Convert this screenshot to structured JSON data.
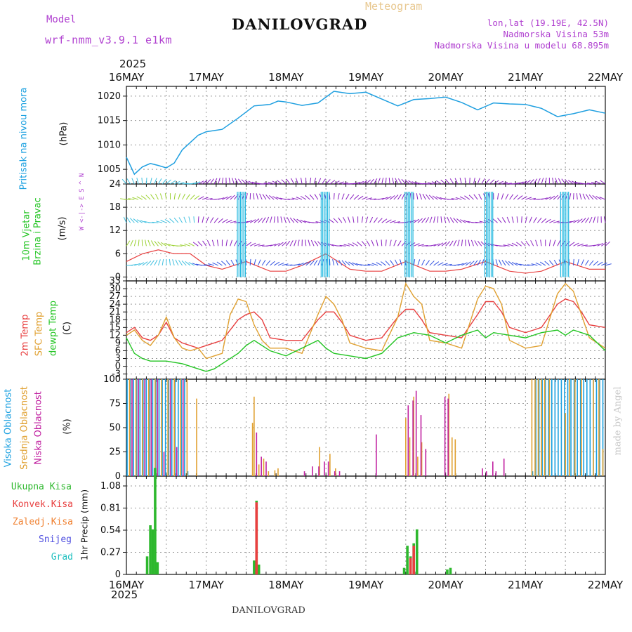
{
  "header": {
    "model_label": "Model",
    "model_name": "wrf-nmm_v3.9.1 e1km",
    "title": "DANILOVGRAD",
    "meteogram_label": "Meteogram",
    "lonlat": "lon,lat (19.19E, 42.5N)",
    "elevation": "Nadmorska Visina 53m",
    "model_elevation": "Nadmorska Visina u modelu 68.895m",
    "year_top": "2025",
    "year_bottom": "2025",
    "footer_station": "DANILOVGRAD",
    "watermark": "made by Angel"
  },
  "colors": {
    "pressure": "#1e9fe0",
    "temp2m": "#e84040",
    "sfc": "#e0a030",
    "dewpt": "#22c422",
    "high_cloud": "#1aa0e0",
    "mid_cloud": "#e0a030",
    "low_cloud": "#c020a0",
    "total_precip": "#2eb82e",
    "conv": "#e84040",
    "frz": "#f08030",
    "snow": "#5050e0",
    "grad": "#20c0c0",
    "purple_text": "#b040d0"
  },
  "panel_labels": {
    "pressure": {
      "main": "Pritisak na nivou mora",
      "unit": "(hPa)"
    },
    "wind": {
      "main1": "10m Vjetar",
      "main2": "Brzina i Pravac",
      "unit": "(m/s)",
      "compass": "W <-|-> E  S ^ N"
    },
    "temp": {
      "main1": "2m Temp",
      "main2": "SFC Temp",
      "main3": "dewpt Temp",
      "unit": "(C)"
    },
    "cloud": {
      "main1": "Visoka Oblacnost",
      "main2": "Srednja Oblacnost",
      "main3": "Niska Oblacnost",
      "unit": "(%)"
    },
    "precip": {
      "l1": "Ukupna Kisa",
      "l2": "Konvek.Kisa",
      "l3": "Zaledj.Kisa",
      "l4": "Snijeg",
      "l5": "Grad",
      "unit": "1hr Precip (mm)"
    }
  },
  "chart_data": [
    {
      "type": "line",
      "name": "pressure",
      "x_categories": [
        "16MAY",
        "17MAY",
        "18MAY",
        "19MAY",
        "20MAY",
        "21MAY",
        "22MAY"
      ],
      "ylim": [
        1002,
        1022
      ],
      "yticks": [
        1005,
        1010,
        1015,
        1020
      ],
      "grid": true,
      "series": [
        {
          "name": "Pritisak na nivou mora",
          "x": [
            0,
            0.1,
            0.2,
            0.3,
            0.4,
            0.5,
            0.6,
            0.7,
            0.8,
            0.9,
            1.0,
            1.2,
            1.4,
            1.6,
            1.8,
            1.9,
            2.0,
            2.2,
            2.4,
            2.6,
            2.8,
            3.0,
            3.2,
            3.4,
            3.6,
            3.8,
            4.0,
            4.2,
            4.4,
            4.6,
            4.8,
            5.0,
            5.2,
            5.4,
            5.6,
            5.8,
            6.0
          ],
          "values": [
            1007.5,
            1004,
            1005.5,
            1006.2,
            1005.8,
            1005.3,
            1006.3,
            1009,
            1010.5,
            1012,
            1012.7,
            1013.2,
            1015.5,
            1018,
            1018.3,
            1019,
            1018.8,
            1018.1,
            1018.6,
            1021,
            1020.5,
            1020.8,
            1019.4,
            1018,
            1019.3,
            1019.5,
            1019.8,
            1018.7,
            1017.2,
            1018.6,
            1018.4,
            1018.3,
            1017.5,
            1015.8,
            1016.4,
            1017.2,
            1016.5
          ]
        }
      ]
    },
    {
      "type": "line",
      "name": "wind",
      "x_categories": [
        "16MAY",
        "17MAY",
        "18MAY",
        "19MAY",
        "20MAY",
        "21MAY",
        "22MAY"
      ],
      "ylim": [
        -1,
        24
      ],
      "yticks": [
        0,
        6,
        12,
        18,
        24
      ],
      "grid": true,
      "series": [
        {
          "name": "wind_speed",
          "x": [
            0,
            0.2,
            0.4,
            0.6,
            0.8,
            1.0,
            1.2,
            1.5,
            1.8,
            2.0,
            2.2,
            2.5,
            2.8,
            3.0,
            3.2,
            3.5,
            3.8,
            4.0,
            4.2,
            4.5,
            4.8,
            5.0,
            5.2,
            5.5,
            5.8,
            6.0
          ],
          "values": [
            4,
            6,
            7,
            6,
            6,
            3,
            2,
            4,
            1.5,
            1.5,
            3,
            6,
            2,
            1.5,
            1.5,
            4,
            1.5,
            1.5,
            2,
            4,
            1.5,
            1,
            1.5,
            4,
            2,
            2
          ]
        }
      ]
    },
    {
      "type": "line",
      "name": "temperature",
      "x_categories": [
        "16MAY",
        "17MAY",
        "18MAY",
        "19MAY",
        "20MAY",
        "21MAY",
        "22MAY"
      ],
      "ylim": [
        -5,
        33
      ],
      "yticks": [
        -3,
        0,
        3,
        6,
        9,
        12,
        15,
        18,
        21,
        24,
        27,
        30,
        33
      ],
      "grid": true,
      "series": [
        {
          "name": "2m Temp",
          "x": [
            0,
            0.1,
            0.2,
            0.3,
            0.4,
            0.5,
            0.6,
            0.7,
            0.8,
            0.9,
            1.0,
            1.2,
            1.4,
            1.5,
            1.6,
            1.7,
            1.8,
            2.0,
            2.2,
            2.4,
            2.5,
            2.6,
            2.7,
            2.8,
            3.0,
            3.2,
            3.4,
            3.5,
            3.6,
            3.7,
            3.8,
            4.0,
            4.2,
            4.4,
            4.5,
            4.6,
            4.7,
            4.8,
            5.0,
            5.2,
            5.4,
            5.5,
            5.6,
            5.7,
            5.8,
            6.0
          ],
          "values": [
            13,
            15,
            11,
            10,
            12,
            17,
            11,
            9,
            8,
            7,
            8,
            10,
            18,
            20,
            21,
            18,
            11,
            10,
            10,
            18,
            21,
            21,
            17,
            12,
            10,
            11,
            19,
            22,
            22,
            18,
            13,
            12,
            11,
            20,
            25,
            25,
            21,
            15,
            13,
            15,
            24,
            26,
            25,
            21,
            16,
            15
          ]
        },
        {
          "name": "SFC Temp",
          "x": [
            0,
            0.1,
            0.2,
            0.3,
            0.4,
            0.5,
            0.6,
            0.7,
            0.8,
            0.9,
            1.0,
            1.2,
            1.3,
            1.4,
            1.5,
            1.6,
            1.7,
            1.8,
            2.0,
            2.2,
            2.4,
            2.5,
            2.6,
            2.7,
            2.8,
            3.0,
            3.2,
            3.4,
            3.5,
            3.6,
            3.7,
            3.8,
            4.0,
            4.2,
            4.4,
            4.5,
            4.6,
            4.7,
            4.8,
            5.0,
            5.2,
            5.4,
            5.5,
            5.6,
            5.7,
            5.8,
            6.0
          ],
          "values": [
            12,
            14,
            10,
            8,
            12,
            19,
            11,
            7,
            6,
            7,
            3,
            5,
            20,
            26,
            25,
            16,
            10,
            7,
            7,
            5,
            20,
            27,
            24,
            18,
            9,
            7,
            6,
            19,
            32,
            27,
            24,
            10,
            9,
            7,
            26,
            31,
            30,
            24,
            10,
            7,
            8,
            28,
            32,
            29,
            20,
            11,
            7
          ]
        },
        {
          "name": "dewpt Temp",
          "x": [
            0,
            0.1,
            0.2,
            0.3,
            0.5,
            0.7,
            0.9,
            1.0,
            1.1,
            1.2,
            1.4,
            1.5,
            1.6,
            1.8,
            2.0,
            2.2,
            2.4,
            2.5,
            2.6,
            2.8,
            3.0,
            3.2,
            3.4,
            3.5,
            3.6,
            3.8,
            4.0,
            4.2,
            4.4,
            4.5,
            4.6,
            4.8,
            5.0,
            5.2,
            5.4,
            5.5,
            5.6,
            5.8,
            6.0
          ],
          "values": [
            11,
            5,
            3,
            2,
            2,
            1,
            -1,
            -2,
            -1,
            1,
            5,
            8,
            10,
            6,
            4,
            7,
            10,
            7,
            5,
            4,
            3,
            5,
            11,
            12,
            13,
            12,
            9,
            12,
            14,
            11,
            13,
            12,
            11,
            13,
            14,
            12,
            14,
            12,
            6
          ]
        }
      ]
    },
    {
      "type": "bar",
      "name": "cloud",
      "ylim": [
        0,
        100
      ],
      "yticks": [
        0,
        25,
        50,
        75,
        100
      ],
      "grid": true,
      "series": [
        {
          "name": "Visoka Oblacnost",
          "x": [
            0.02,
            0.06,
            0.1,
            0.14,
            0.18,
            0.22,
            0.26,
            0.3,
            0.34,
            0.38,
            0.42,
            0.46,
            0.5,
            0.54,
            0.58,
            0.62,
            0.66,
            0.7,
            0.74,
            0.78,
            5.1,
            5.14,
            5.18,
            5.22,
            5.26,
            5.3,
            5.34,
            5.38,
            5.42,
            5.46,
            5.5,
            5.54,
            5.58,
            5.62,
            5.66,
            5.7,
            5.74,
            5.78,
            5.82,
            5.86,
            5.9,
            5.94,
            5.98
          ],
          "values": [
            100,
            100,
            100,
            100,
            100,
            100,
            100,
            100,
            100,
            100,
            100,
            100,
            100,
            100,
            100,
            100,
            100,
            100,
            100,
            5,
            5,
            100,
            100,
            100,
            100,
            100,
            100,
            100,
            100,
            100,
            100,
            100,
            100,
            100,
            100,
            100,
            100,
            100,
            100,
            100,
            100,
            100,
            100
          ]
        },
        {
          "name": "Srednja Oblacnost",
          "x": [
            0.04,
            0.12,
            0.2,
            0.28,
            0.36,
            0.44,
            0.52,
            0.6,
            0.68,
            0.76,
            0.88,
            1.58,
            1.6,
            1.66,
            1.72,
            1.78,
            1.86,
            1.9,
            2.42,
            2.55,
            2.62,
            3.5,
            3.55,
            3.6,
            3.65,
            3.7,
            4.04,
            4.08,
            4.12,
            5.08,
            5.12,
            5.16,
            5.2,
            5.24,
            5.3,
            5.5,
            5.55,
            5.62,
            5.7,
            5.85,
            5.92,
            5.97
          ],
          "values": [
            100,
            100,
            100,
            100,
            100,
            100,
            100,
            100,
            100,
            100,
            80,
            55,
            82,
            12,
            18,
            5,
            6,
            8,
            30,
            23,
            8,
            60,
            40,
            82,
            20,
            35,
            85,
            40,
            38,
            100,
            100,
            100,
            100,
            100,
            100,
            65,
            100,
            100,
            100,
            100,
            100,
            28
          ]
        },
        {
          "name": "Niska Oblacnost",
          "x": [
            0.06,
            0.14,
            0.22,
            0.3,
            0.38,
            0.46,
            0.54,
            0.62,
            0.7,
            1.62,
            1.68,
            1.74,
            2.22,
            2.32,
            2.4,
            2.47,
            2.52,
            2.6,
            2.66,
            3.12,
            3.52,
            3.58,
            3.62,
            3.68,
            3.74,
            3.98,
            4.02,
            4.45,
            4.5,
            4.58,
            4.62,
            4.72
          ],
          "values": [
            100,
            100,
            100,
            100,
            100,
            25,
            100,
            30,
            100,
            45,
            20,
            15,
            5,
            10,
            10,
            15,
            15,
            5,
            5,
            43,
            73,
            78,
            88,
            63,
            28,
            82,
            80,
            8,
            5,
            15,
            5,
            18
          ]
        }
      ]
    },
    {
      "type": "bar",
      "name": "precip",
      "ylim": [
        0,
        1.2
      ],
      "yticks": [
        0,
        0.27,
        0.54,
        0.81,
        1.08
      ],
      "ytick_labels": [
        "0",
        "0.27",
        "0.54",
        "0.81",
        "1.08"
      ],
      "grid": true,
      "series": [
        {
          "name": "Ukupna Kisa",
          "x": [
            0.26,
            0.3,
            0.33,
            0.36,
            0.39,
            1.6,
            1.63,
            1.66,
            3.48,
            3.52,
            3.56,
            3.6,
            3.64,
            4.02,
            4.06
          ],
          "values": [
            0.22,
            0.6,
            0.55,
            1.3,
            0.15,
            0.17,
            0.9,
            0.12,
            0.08,
            0.35,
            0.22,
            0.38,
            0.55,
            0.06,
            0.08
          ]
        },
        {
          "name": "Konvek.Kisa",
          "x": [
            1.63,
            3.56,
            3.6
          ],
          "values": [
            0.88,
            0.2,
            0.35
          ]
        }
      ]
    }
  ]
}
